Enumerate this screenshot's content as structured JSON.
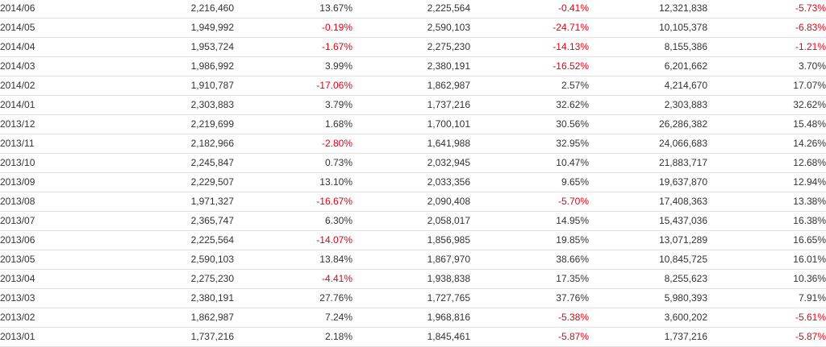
{
  "colors": {
    "text": "#333333",
    "negative": "#e60012",
    "row_border": "#e3e3e3"
  },
  "rows": [
    {
      "month": "2014/06",
      "v1": "2,216,460",
      "p1": "13.67%",
      "v2": "2,225,564",
      "p2": "-0.41%",
      "v3": "12,321,838",
      "p3": "-5.73%"
    },
    {
      "month": "2014/05",
      "v1": "1,949,992",
      "p1": "-0.19%",
      "v2": "2,590,103",
      "p2": "-24.71%",
      "v3": "10,105,378",
      "p3": "-6.83%"
    },
    {
      "month": "2014/04",
      "v1": "1,953,724",
      "p1": "-1.67%",
      "v2": "2,275,230",
      "p2": "-14.13%",
      "v3": "8,155,386",
      "p3": "-1.21%"
    },
    {
      "month": "2014/03",
      "v1": "1,986,992",
      "p1": "3.99%",
      "v2": "2,380,191",
      "p2": "-16.52%",
      "v3": "6,201,662",
      "p3": "3.70%"
    },
    {
      "month": "2014/02",
      "v1": "1,910,787",
      "p1": "-17.06%",
      "v2": "1,862,987",
      "p2": "2.57%",
      "v3": "4,214,670",
      "p3": "17.07%"
    },
    {
      "month": "2014/01",
      "v1": "2,303,883",
      "p1": "3.79%",
      "v2": "1,737,216",
      "p2": "32.62%",
      "v3": "2,303,883",
      "p3": "32.62%"
    },
    {
      "month": "2013/12",
      "v1": "2,219,699",
      "p1": "1.68%",
      "v2": "1,700,101",
      "p2": "30.56%",
      "v3": "26,286,382",
      "p3": "15.48%"
    },
    {
      "month": "2013/11",
      "v1": "2,182,966",
      "p1": "-2.80%",
      "v2": "1,641,988",
      "p2": "32.95%",
      "v3": "24,066,683",
      "p3": "14.26%"
    },
    {
      "month": "2013/10",
      "v1": "2,245,847",
      "p1": "0.73%",
      "v2": "2,032,945",
      "p2": "10.47%",
      "v3": "21,883,717",
      "p3": "12.68%"
    },
    {
      "month": "2013/09",
      "v1": "2,229,507",
      "p1": "13.10%",
      "v2": "2,033,356",
      "p2": "9.65%",
      "v3": "19,637,870",
      "p3": "12.94%"
    },
    {
      "month": "2013/08",
      "v1": "1,971,327",
      "p1": "-16.67%",
      "v2": "2,090,408",
      "p2": "-5.70%",
      "v3": "17,408,363",
      "p3": "13.38%"
    },
    {
      "month": "2013/07",
      "v1": "2,365,747",
      "p1": "6.30%",
      "v2": "2,058,017",
      "p2": "14.95%",
      "v3": "15,437,036",
      "p3": "16.38%"
    },
    {
      "month": "2013/06",
      "v1": "2,225,564",
      "p1": "-14.07%",
      "v2": "1,856,985",
      "p2": "19.85%",
      "v3": "13,071,289",
      "p3": "16.65%"
    },
    {
      "month": "2013/05",
      "v1": "2,590,103",
      "p1": "13.84%",
      "v2": "1,867,970",
      "p2": "38.66%",
      "v3": "10,845,725",
      "p3": "16.01%"
    },
    {
      "month": "2013/04",
      "v1": "2,275,230",
      "p1": "-4.41%",
      "v2": "1,938,838",
      "p2": "17.35%",
      "v3": "8,255,623",
      "p3": "10.36%"
    },
    {
      "month": "2013/03",
      "v1": "2,380,191",
      "p1": "27.76%",
      "v2": "1,727,765",
      "p2": "37.76%",
      "v3": "5,980,393",
      "p3": "7.91%"
    },
    {
      "month": "2013/02",
      "v1": "1,862,987",
      "p1": "7.24%",
      "v2": "1,968,816",
      "p2": "-5.38%",
      "v3": "3,600,202",
      "p3": "-5.61%"
    },
    {
      "month": "2013/01",
      "v1": "1,737,216",
      "p1": "2.18%",
      "v2": "1,845,461",
      "p2": "-5.87%",
      "v3": "1,737,216",
      "p3": "-5.87%"
    }
  ]
}
